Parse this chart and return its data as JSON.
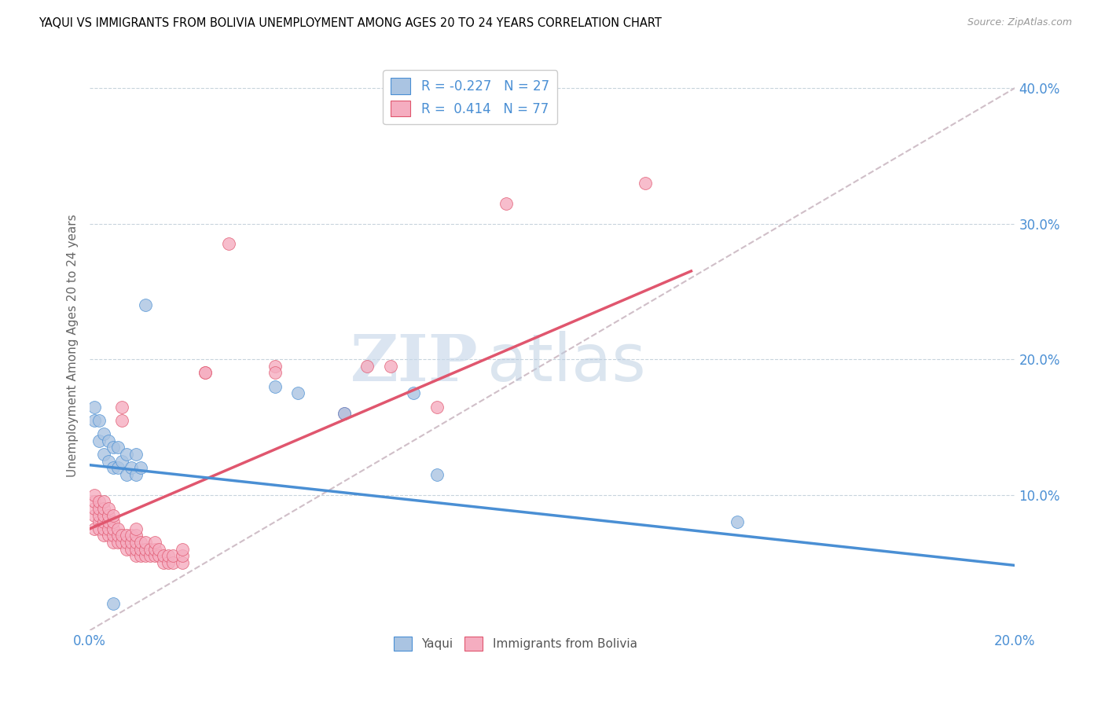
{
  "title": "YAQUI VS IMMIGRANTS FROM BOLIVIA UNEMPLOYMENT AMONG AGES 20 TO 24 YEARS CORRELATION CHART",
  "source": "Source: ZipAtlas.com",
  "ylabel": "Unemployment Among Ages 20 to 24 years",
  "xlim": [
    0.0,
    0.2
  ],
  "ylim": [
    0.0,
    0.42
  ],
  "yaqui_R": -0.227,
  "yaqui_N": 27,
  "bolivia_R": 0.414,
  "bolivia_N": 77,
  "yaqui_color": "#aac4e2",
  "bolivia_color": "#f5adc0",
  "yaqui_line_color": "#4a8fd4",
  "bolivia_line_color": "#e0566e",
  "diagonal_color": "#d0bfc8",
  "watermark_zip": "ZIP",
  "watermark_atlas": "atlas",
  "yaqui_line_x0": 0.0,
  "yaqui_line_y0": 0.122,
  "yaqui_line_x1": 0.2,
  "yaqui_line_y1": 0.048,
  "bolivia_line_x0": 0.0,
  "bolivia_line_y0": 0.075,
  "bolivia_line_x1": 0.13,
  "bolivia_line_y1": 0.265,
  "yaqui_x": [
    0.001,
    0.001,
    0.002,
    0.002,
    0.003,
    0.003,
    0.004,
    0.004,
    0.005,
    0.005,
    0.006,
    0.006,
    0.007,
    0.008,
    0.008,
    0.009,
    0.01,
    0.01,
    0.011,
    0.012,
    0.04,
    0.045,
    0.055,
    0.07,
    0.075,
    0.14,
    0.005
  ],
  "yaqui_y": [
    0.155,
    0.165,
    0.14,
    0.155,
    0.13,
    0.145,
    0.125,
    0.14,
    0.12,
    0.135,
    0.12,
    0.135,
    0.125,
    0.115,
    0.13,
    0.12,
    0.115,
    0.13,
    0.12,
    0.24,
    0.18,
    0.175,
    0.16,
    0.175,
    0.115,
    0.08,
    0.02
  ],
  "bolivia_x": [
    0.001,
    0.001,
    0.001,
    0.001,
    0.001,
    0.002,
    0.002,
    0.002,
    0.002,
    0.002,
    0.003,
    0.003,
    0.003,
    0.003,
    0.003,
    0.003,
    0.004,
    0.004,
    0.004,
    0.004,
    0.004,
    0.005,
    0.005,
    0.005,
    0.005,
    0.005,
    0.006,
    0.006,
    0.006,
    0.007,
    0.007,
    0.007,
    0.007,
    0.008,
    0.008,
    0.008,
    0.009,
    0.009,
    0.009,
    0.01,
    0.01,
    0.01,
    0.01,
    0.01,
    0.011,
    0.011,
    0.011,
    0.012,
    0.012,
    0.012,
    0.013,
    0.013,
    0.014,
    0.014,
    0.014,
    0.015,
    0.015,
    0.016,
    0.016,
    0.017,
    0.017,
    0.018,
    0.018,
    0.02,
    0.02,
    0.02,
    0.025,
    0.025,
    0.03,
    0.04,
    0.04,
    0.055,
    0.06,
    0.065,
    0.075,
    0.09,
    0.12
  ],
  "bolivia_y": [
    0.085,
    0.09,
    0.095,
    0.1,
    0.075,
    0.08,
    0.085,
    0.09,
    0.095,
    0.075,
    0.07,
    0.075,
    0.08,
    0.085,
    0.09,
    0.095,
    0.07,
    0.075,
    0.08,
    0.085,
    0.09,
    0.065,
    0.07,
    0.075,
    0.08,
    0.085,
    0.065,
    0.07,
    0.075,
    0.065,
    0.07,
    0.155,
    0.165,
    0.06,
    0.065,
    0.07,
    0.06,
    0.065,
    0.07,
    0.055,
    0.06,
    0.065,
    0.07,
    0.075,
    0.055,
    0.06,
    0.065,
    0.055,
    0.06,
    0.065,
    0.055,
    0.06,
    0.055,
    0.06,
    0.065,
    0.055,
    0.06,
    0.05,
    0.055,
    0.05,
    0.055,
    0.05,
    0.055,
    0.05,
    0.055,
    0.06,
    0.19,
    0.19,
    0.285,
    0.195,
    0.19,
    0.16,
    0.195,
    0.195,
    0.165,
    0.315,
    0.33
  ]
}
